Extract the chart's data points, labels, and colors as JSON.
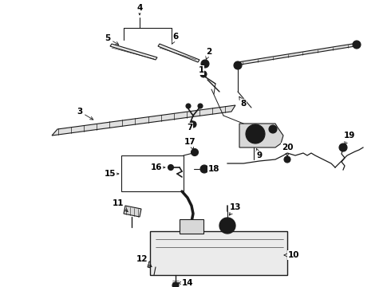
{
  "bg_color": "#ffffff",
  "line_color": "#1a1a1a",
  "label_color": "#000000",
  "fig_width": 4.9,
  "fig_height": 3.6,
  "dpi": 100,
  "label_fontsize": 7.5,
  "arrow_lw": 0.6,
  "arrow_ms": 7
}
